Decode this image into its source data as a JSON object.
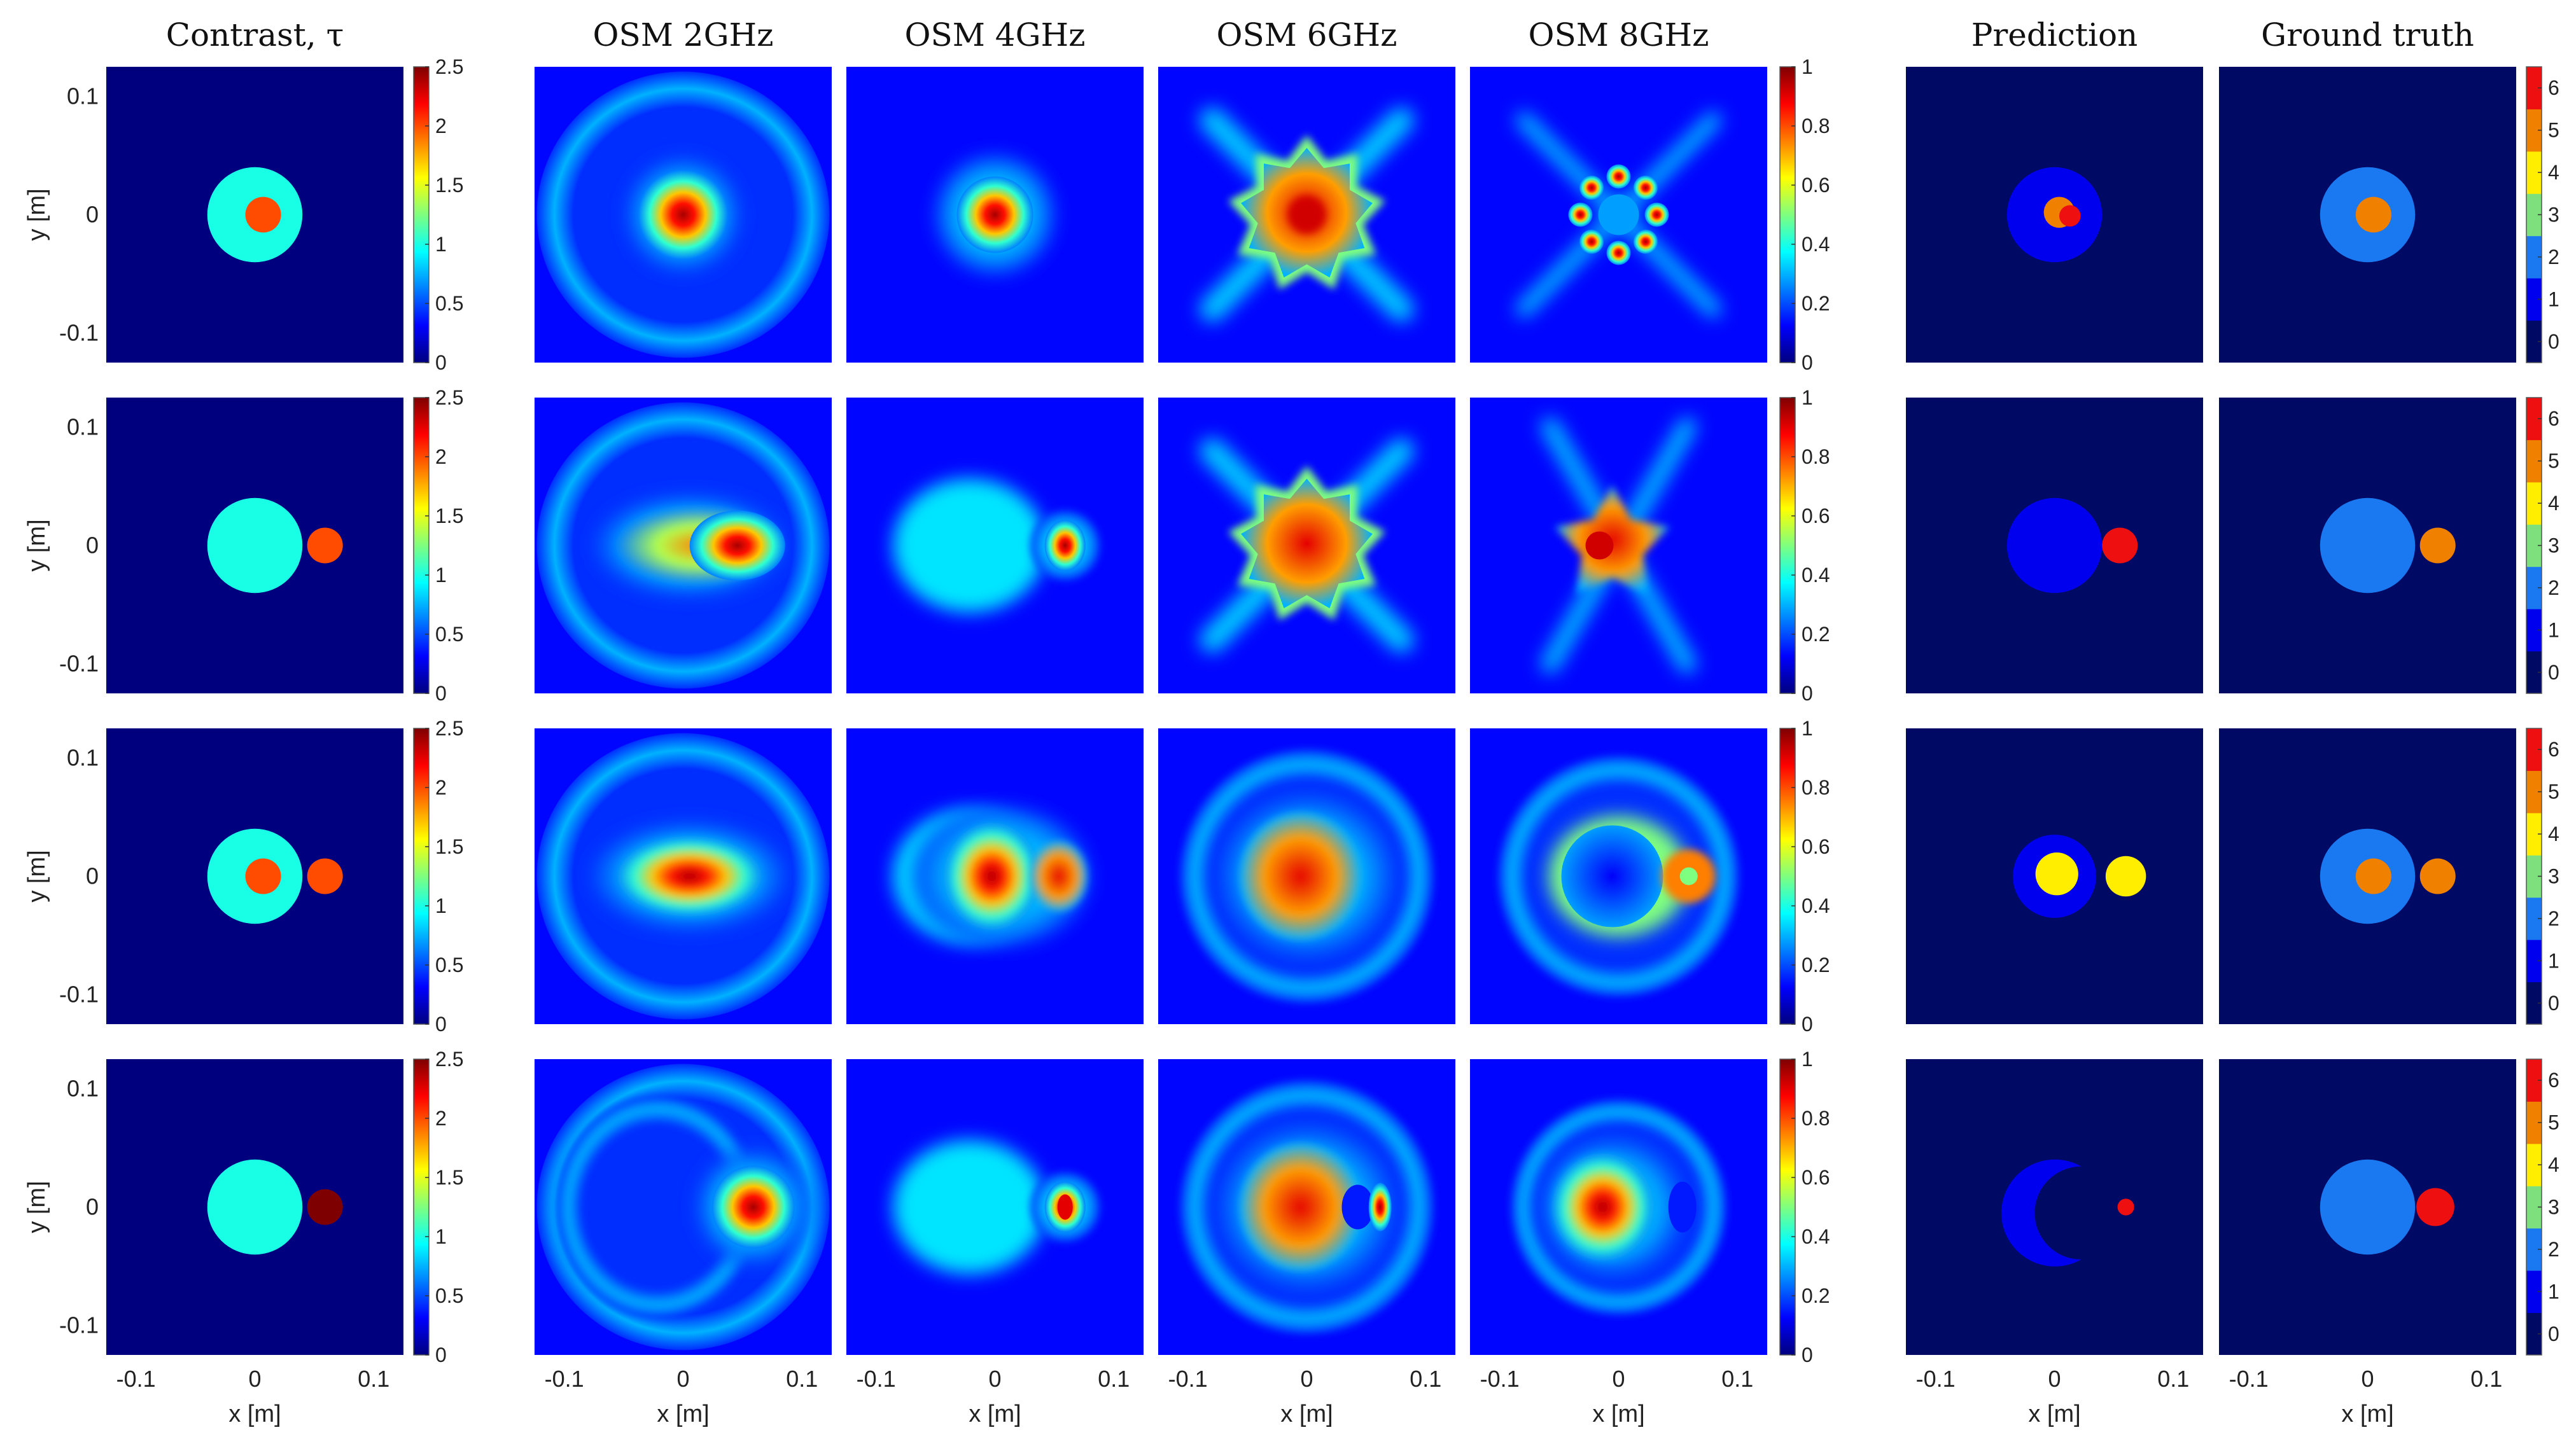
{
  "column_titles": [
    "Contrast, τ",
    "OSM 2GHz",
    "OSM 4GHz",
    "OSM 6GHz",
    "OSM 8GHz",
    "Prediction",
    "Ground truth"
  ],
  "colors": {
    "background": "#000080",
    "jet_stops": [
      "#00007f",
      "#0000ff",
      "#007fff",
      "#00ffff",
      "#7fff7f",
      "#ffff00",
      "#ff7f00",
      "#ff0000",
      "#7f0000"
    ],
    "discrete_colormap": [
      "#000a64",
      "#0000ee",
      "#1a78f0",
      "#7de07d",
      "#ffee00",
      "#f08000",
      "#ee1010"
    ]
  },
  "chart_data": {
    "type": "heatmap",
    "grid": "4 rows x 7 columns of image panels",
    "xlabel": "x [m]",
    "ylabel": "y [m]",
    "xlim": [
      -0.125,
      0.125
    ],
    "ylim": [
      -0.125,
      0.125
    ],
    "x_ticks": [
      -0.1,
      0,
      0.1
    ],
    "y_ticks": [
      0.1,
      0,
      -0.1
    ],
    "x_tick_labels": [
      "-0.1",
      "0",
      "0.1"
    ],
    "y_tick_labels": [
      "0.1",
      "0",
      "-0.1"
    ],
    "colorbars": {
      "contrast": {
        "range": [
          0,
          2.5
        ],
        "ticks": [
          "2.5",
          "2",
          "1.5",
          "1",
          "0.5",
          "0"
        ],
        "tick_values": [
          2.5,
          2,
          1.5,
          1,
          0.5,
          0
        ]
      },
      "osm": {
        "range": [
          0,
          1
        ],
        "ticks": [
          "1",
          "0.8",
          "0.6",
          "0.4",
          "0.2",
          "0"
        ],
        "tick_values": [
          1,
          0.8,
          0.6,
          0.4,
          0.2,
          0
        ]
      },
      "classes": {
        "range": [
          -0.5,
          6.5
        ],
        "ticks": [
          "6",
          "5",
          "4",
          "3",
          "2",
          "1",
          "0"
        ],
        "tick_values": [
          6,
          5,
          4,
          3,
          2,
          1,
          0
        ]
      }
    },
    "rows": [
      {
        "contrast": [
          {
            "shape": "disk",
            "x": 0,
            "y": 0,
            "r": 0.04,
            "value": 1
          },
          {
            "shape": "disk",
            "x": 0.007,
            "y": 0,
            "r": 0.015,
            "value": 2
          }
        ],
        "prediction": [
          {
            "shape": "disk",
            "x": 0,
            "y": 0,
            "r": 0.04,
            "class": 1
          },
          {
            "shape": "disk",
            "x": 0.004,
            "y": 0.002,
            "r": 0.013,
            "class": 5
          },
          {
            "shape": "disk",
            "x": 0.013,
            "y": -0.001,
            "r": 0.009,
            "class": 6
          }
        ],
        "ground_truth": [
          {
            "shape": "disk",
            "x": 0,
            "y": 0,
            "r": 0.04,
            "class": 2
          },
          {
            "shape": "disk",
            "x": 0.005,
            "y": 0,
            "r": 0.015,
            "class": 5
          }
        ]
      },
      {
        "contrast": [
          {
            "shape": "disk",
            "x": 0,
            "y": 0,
            "r": 0.04,
            "value": 1
          },
          {
            "shape": "disk",
            "x": 0.059,
            "y": 0,
            "r": 0.015,
            "value": 2
          }
        ],
        "prediction": [
          {
            "shape": "disk",
            "x": 0,
            "y": 0,
            "r": 0.04,
            "class": 1
          },
          {
            "shape": "disk",
            "x": 0.055,
            "y": 0,
            "r": 0.015,
            "class": 6
          }
        ],
        "ground_truth": [
          {
            "shape": "disk",
            "x": 0,
            "y": 0,
            "r": 0.04,
            "class": 2
          },
          {
            "shape": "disk",
            "x": 0.059,
            "y": 0,
            "r": 0.015,
            "class": 5
          }
        ]
      },
      {
        "contrast": [
          {
            "shape": "disk",
            "x": 0,
            "y": 0,
            "r": 0.04,
            "value": 1
          },
          {
            "shape": "disk",
            "x": 0.007,
            "y": 0,
            "r": 0.015,
            "value": 2
          },
          {
            "shape": "disk",
            "x": 0.059,
            "y": 0,
            "r": 0.015,
            "value": 2
          }
        ],
        "prediction": [
          {
            "shape": "disk",
            "x": 0,
            "y": 0,
            "r": 0.035,
            "class": 1
          },
          {
            "shape": "disk",
            "x": 0.002,
            "y": 0.002,
            "r": 0.018,
            "class": 4
          },
          {
            "shape": "disk",
            "x": 0.06,
            "y": 0,
            "r": 0.017,
            "class": 4
          }
        ],
        "ground_truth": [
          {
            "shape": "disk",
            "x": 0,
            "y": 0,
            "r": 0.04,
            "class": 2
          },
          {
            "shape": "disk",
            "x": 0.005,
            "y": 0,
            "r": 0.015,
            "class": 5
          },
          {
            "shape": "disk",
            "x": 0.059,
            "y": 0,
            "r": 0.015,
            "class": 5
          }
        ]
      },
      {
        "contrast": [
          {
            "shape": "disk",
            "x": 0,
            "y": 0,
            "r": 0.04,
            "value": 1
          },
          {
            "shape": "disk",
            "x": 0.059,
            "y": 0,
            "r": 0.015,
            "value": 2.5
          }
        ],
        "prediction": [
          {
            "shape": "crescent",
            "x": 0,
            "y": -0.005,
            "r": 0.045,
            "class": 1
          },
          {
            "shape": "disk",
            "x": 0.06,
            "y": 0,
            "r": 0.007,
            "class": 6
          }
        ],
        "ground_truth": [
          {
            "shape": "disk",
            "x": 0,
            "y": 0,
            "r": 0.04,
            "class": 2
          },
          {
            "shape": "disk",
            "x": 0.057,
            "y": 0,
            "r": 0.016,
            "class": 6
          }
        ]
      }
    ]
  }
}
